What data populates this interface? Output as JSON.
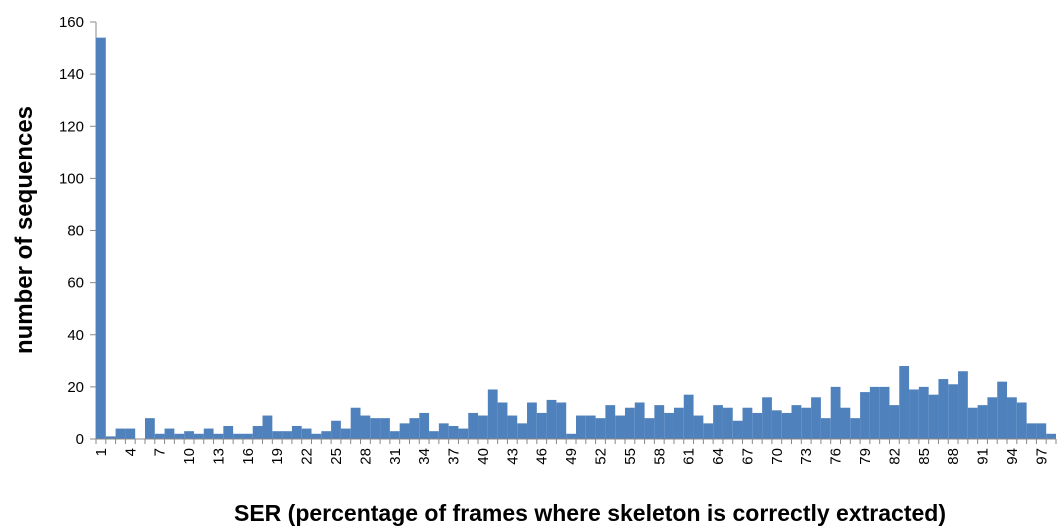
{
  "chart_data": {
    "type": "bar",
    "title": "",
    "xlabel": "SER (percentage of frames where skeleton is correctly extracted)",
    "ylabel": "number of sequences",
    "ylim": [
      0,
      160
    ],
    "yticks": [
      0,
      20,
      40,
      60,
      80,
      100,
      120,
      140,
      160
    ],
    "categories": [
      1,
      2,
      3,
      4,
      5,
      6,
      7,
      8,
      9,
      10,
      11,
      12,
      13,
      14,
      15,
      16,
      17,
      18,
      19,
      20,
      21,
      22,
      23,
      24,
      25,
      26,
      27,
      28,
      29,
      30,
      31,
      32,
      33,
      34,
      35,
      36,
      37,
      38,
      39,
      40,
      41,
      42,
      43,
      44,
      45,
      46,
      47,
      48,
      49,
      50,
      51,
      52,
      53,
      54,
      55,
      56,
      57,
      58,
      59,
      60,
      61,
      62,
      63,
      64,
      65,
      66,
      67,
      68,
      69,
      70,
      71,
      72,
      73,
      74,
      75,
      76,
      77,
      78,
      79,
      80,
      81,
      82,
      83,
      84,
      85,
      86,
      87,
      88,
      89,
      90,
      91,
      92,
      93,
      94,
      95,
      96,
      97,
      98
    ],
    "tick_labels": [
      "1",
      "4",
      "7",
      "10",
      "13",
      "16",
      "19",
      "22",
      "25",
      "28",
      "31",
      "34",
      "37",
      "40",
      "43",
      "46",
      "49",
      "52",
      "55",
      "58",
      "61",
      "64",
      "67",
      "70",
      "73",
      "76",
      "79",
      "82",
      "85",
      "88",
      "91",
      "94",
      "97"
    ],
    "values": [
      154,
      1,
      4,
      4,
      0,
      8,
      2,
      4,
      2,
      3,
      2,
      4,
      2,
      5,
      2,
      2,
      5,
      9,
      3,
      3,
      5,
      4,
      2,
      3,
      7,
      4,
      12,
      9,
      8,
      8,
      3,
      6,
      8,
      10,
      3,
      6,
      5,
      4,
      10,
      9,
      19,
      14,
      9,
      6,
      14,
      10,
      15,
      14,
      2,
      9,
      9,
      8,
      13,
      9,
      12,
      14,
      8,
      13,
      10,
      12,
      17,
      9,
      6,
      13,
      12,
      7,
      12,
      10,
      16,
      11,
      10,
      13,
      12,
      16,
      8,
      20,
      12,
      8,
      18,
      20,
      20,
      13,
      28,
      19,
      20,
      17,
      23,
      21,
      26,
      12,
      13,
      16,
      22,
      16,
      14,
      6,
      6,
      2
    ],
    "color": "#4f81bd",
    "grid": false,
    "legend": "none"
  }
}
